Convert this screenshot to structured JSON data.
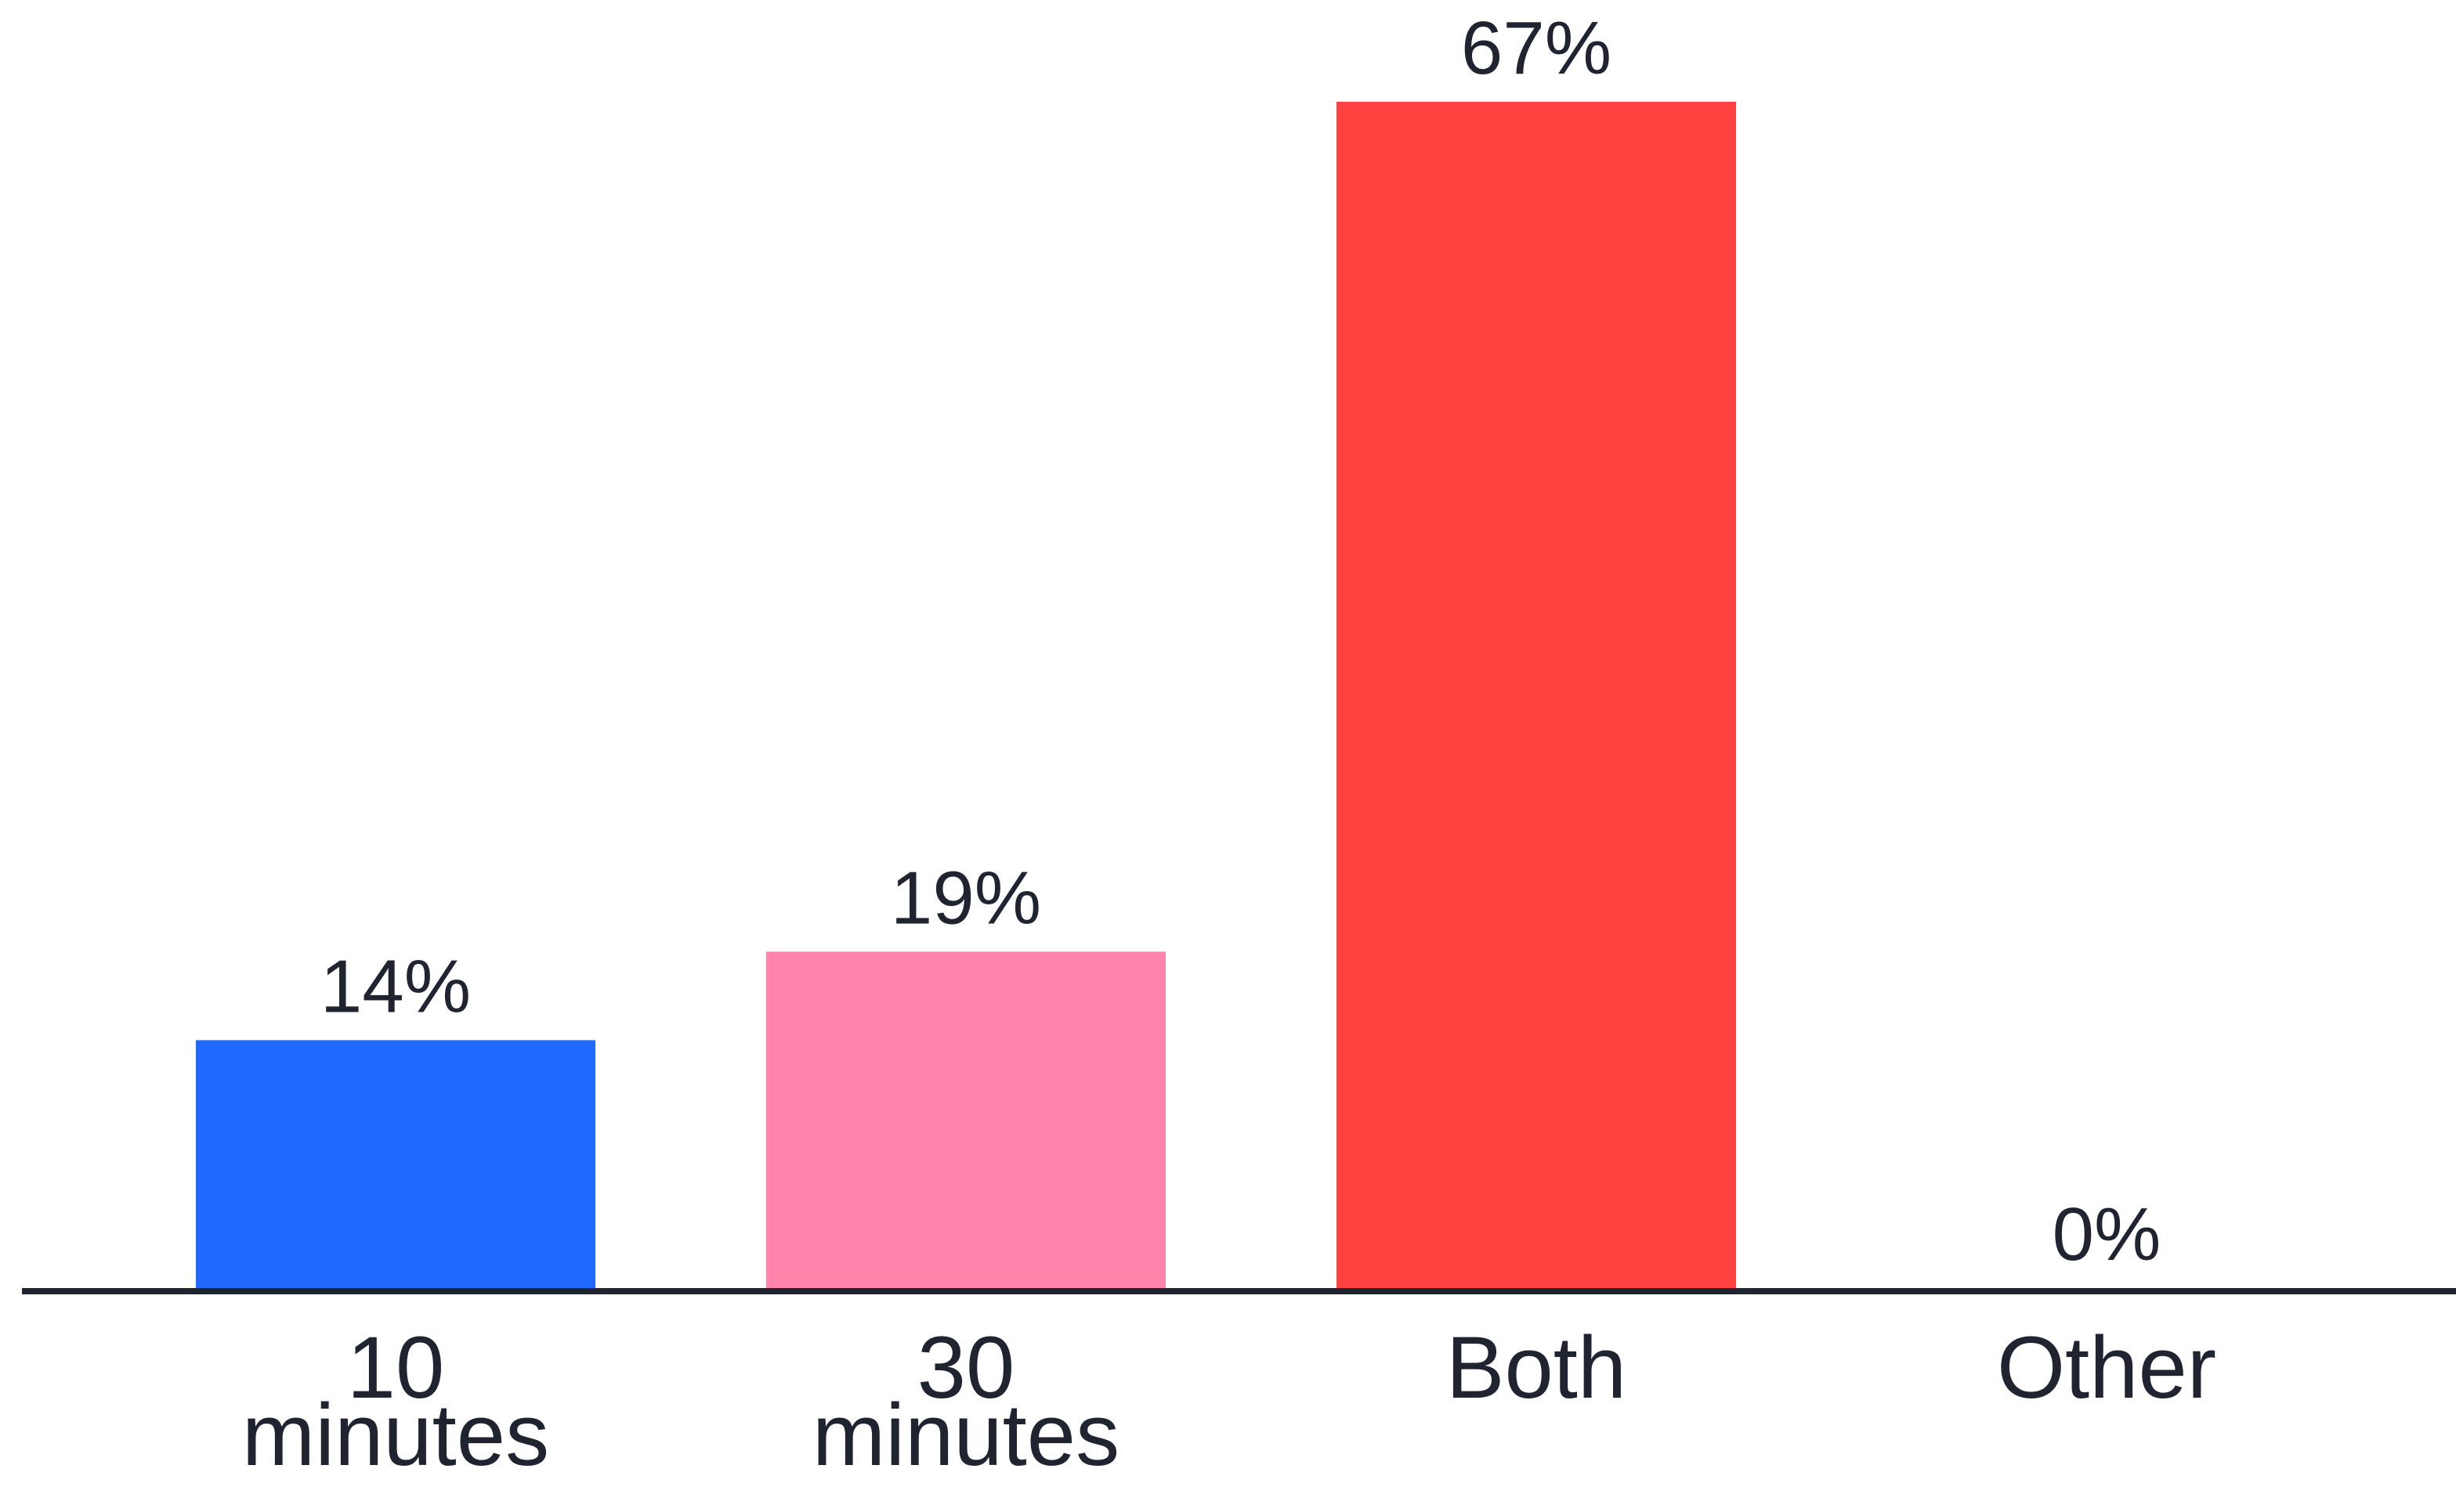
{
  "chart_data": {
    "type": "bar",
    "categories": [
      [
        "10",
        "minutes"
      ],
      [
        "30",
        "minutes"
      ],
      [
        "Both"
      ],
      [
        "Other"
      ]
    ],
    "values": [
      14,
      19,
      67,
      0
    ],
    "value_labels": [
      "14%",
      "19%",
      "67%",
      "0%"
    ],
    "colors": [
      "#1f69ff",
      "#ff84ac",
      "#ff413f",
      "#ff413f"
    ],
    "ylim": [
      0,
      67
    ],
    "title": "",
    "xlabel": "",
    "ylabel": "",
    "grid": false,
    "legend": "none"
  },
  "style": {
    "axis_color": "#1f2430",
    "text_color": "#1f2430",
    "background": "#ffffff"
  }
}
